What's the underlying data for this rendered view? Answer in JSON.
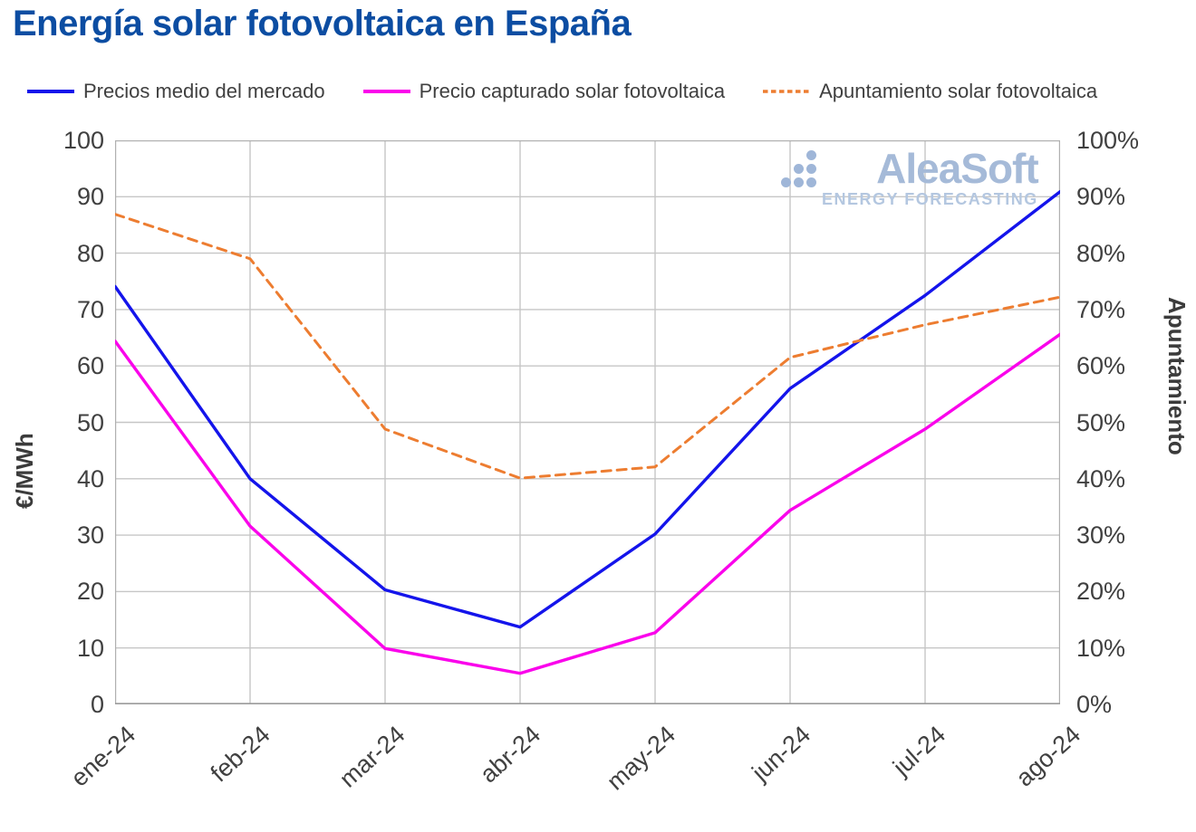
{
  "page": {
    "title": "Energía solar fotovoltaica en España"
  },
  "watermark": {
    "brand": "AleaSoft",
    "tagline": "ENERGY FORECASTING"
  },
  "legend": [
    {
      "label": "Precios medio del mercado",
      "color": "#1414eb",
      "dash": false
    },
    {
      "label": "Precio capturado solar fotovoltaica",
      "color": "#fa00eb",
      "dash": false
    },
    {
      "label": "Apuntamiento solar fotovoltaica",
      "color": "#ed7d31",
      "dash": true
    }
  ],
  "axes": {
    "left": {
      "title": "€/MWh",
      "ticks": [
        "100",
        "90",
        "80",
        "70",
        "60",
        "50",
        "40",
        "30",
        "20",
        "10",
        "0"
      ]
    },
    "right": {
      "title": "Apuntamiento",
      "ticks": [
        "100%",
        "90%",
        "80%",
        "70%",
        "60%",
        "50%",
        "40%",
        "30%",
        "20%",
        "10%",
        "0%"
      ]
    },
    "x": {
      "ticks": [
        "ene-24",
        "feb-24",
        "mar-24",
        "abr-24",
        "may-24",
        "jun-24",
        "jul-24",
        "ago-24"
      ]
    }
  },
  "chart_data": {
    "type": "line",
    "title": "Energía solar fotovoltaica en España",
    "categories": [
      "ene-24",
      "feb-24",
      "mar-24",
      "abr-24",
      "may-24",
      "jun-24",
      "jul-24",
      "ago-24"
    ],
    "series": [
      {
        "name": "Precios medio del mercado",
        "axis": "left",
        "unit": "€/MWh",
        "color": "#1414eb",
        "style": "solid",
        "values": [
          74.1,
          40.0,
          20.3,
          13.7,
          30.2,
          56.0,
          72.5,
          90.9
        ]
      },
      {
        "name": "Precio capturado solar fotovoltaica",
        "axis": "left",
        "unit": "€/MWh",
        "color": "#fa00eb",
        "style": "solid",
        "values": [
          64.4,
          31.6,
          9.9,
          5.5,
          12.7,
          34.4,
          48.8,
          65.6
        ]
      },
      {
        "name": "Apuntamiento solar fotovoltaica",
        "axis": "right",
        "unit": "%",
        "color": "#ed7d31",
        "style": "dashed",
        "values": [
          86.9,
          79.0,
          48.8,
          40.1,
          42.1,
          61.5,
          67.3,
          72.2
        ]
      }
    ],
    "xlabel": "",
    "ylabel_left": "€/MWh",
    "ylabel_right": "Apuntamiento",
    "ylim_left": [
      0,
      100
    ],
    "ylim_right": [
      0,
      100
    ],
    "ytick_step": 10,
    "grid": true,
    "legend_position": "top"
  },
  "colors": {
    "title": "#0c4da2",
    "grid": "#c6c6c6",
    "plot_border": "#b0b0b0",
    "axis_line": "#9b9b9b",
    "tick_text": "#404040",
    "watermark": "#a5bad8",
    "watermark_tagline": "#b4c7e0",
    "watermark_dots": "#9fb6d8"
  }
}
